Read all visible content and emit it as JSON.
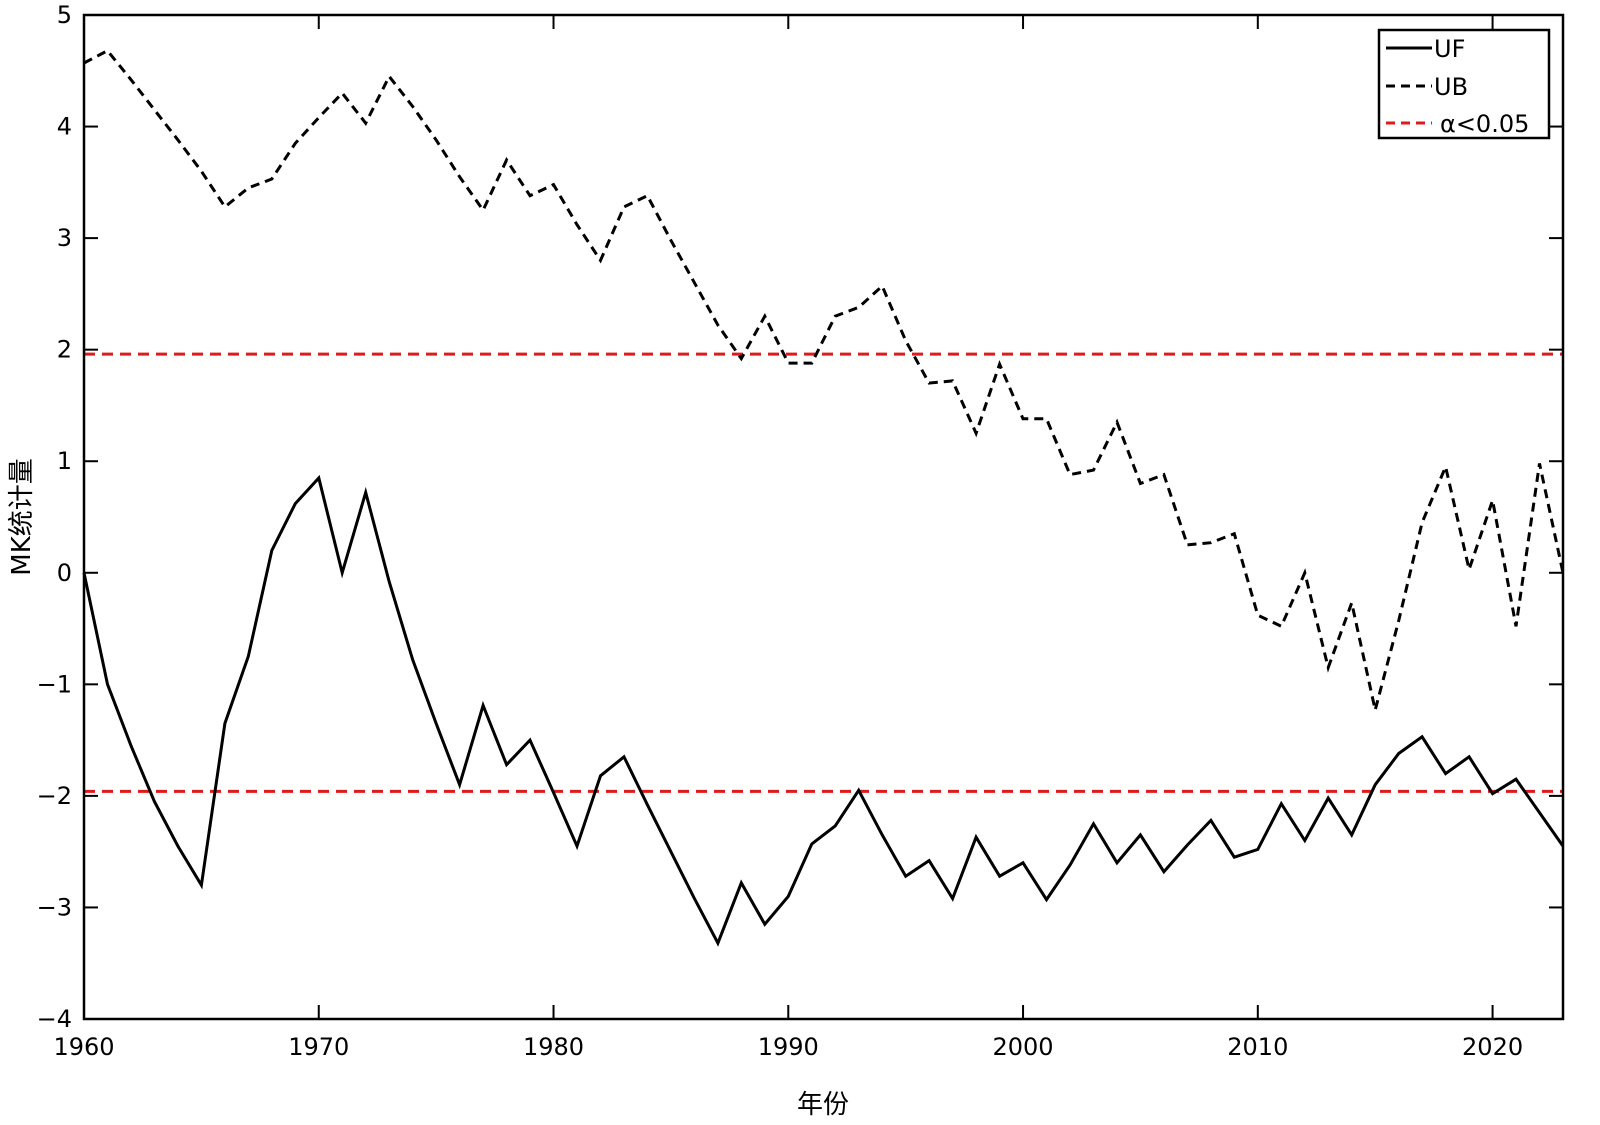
{
  "chart_data": {
    "type": "line",
    "title": "",
    "xlabel": "年份",
    "ylabel": "MK统计量",
    "xlim": [
      1960,
      2023
    ],
    "ylim": [
      -4,
      5
    ],
    "xticks": [
      1960,
      1970,
      1980,
      1990,
      2000,
      2010,
      2020
    ],
    "yticks": [
      -4,
      -3,
      -2,
      -1,
      0,
      1,
      2,
      3,
      4,
      5
    ],
    "x": [
      1960,
      1961,
      1962,
      1963,
      1964,
      1965,
      1966,
      1967,
      1968,
      1969,
      1970,
      1971,
      1972,
      1973,
      1974,
      1975,
      1976,
      1977,
      1978,
      1979,
      1980,
      1981,
      1982,
      1983,
      1984,
      1985,
      1986,
      1987,
      1988,
      1989,
      1990,
      1991,
      1992,
      1993,
      1994,
      1995,
      1996,
      1997,
      1998,
      1999,
      2000,
      2001,
      2002,
      2003,
      2004,
      2005,
      2006,
      2007,
      2008,
      2009,
      2010,
      2011,
      2012,
      2013,
      2014,
      2015,
      2016,
      2017,
      2018,
      2019,
      2020,
      2021,
      2022,
      2023
    ],
    "series": [
      {
        "name": "UF",
        "color": "#000000",
        "dash": "solid",
        "values": [
          0,
          -1.0,
          -1.55,
          -2.05,
          -2.45,
          -2.8,
          -1.35,
          -0.75,
          0.2,
          0.62,
          0.85,
          0.0,
          0.72,
          -0.08,
          -0.78,
          -1.35,
          -1.9,
          -1.19,
          -1.72,
          -1.5,
          -1.97,
          -2.45,
          -1.82,
          -1.65,
          -2.08,
          -2.5,
          -2.92,
          -3.32,
          -2.78,
          -3.15,
          -2.9,
          -2.43,
          -2.27,
          -1.95,
          -2.35,
          -2.72,
          -2.58,
          -2.92,
          -2.37,
          -2.72,
          -2.6,
          -2.93,
          -2.62,
          -2.25,
          -2.6,
          -2.35,
          -2.68,
          -2.44,
          -2.22,
          -2.55,
          -2.48,
          -2.07,
          -2.4,
          -2.02,
          -2.35,
          -1.9,
          -1.62,
          -1.47,
          -1.8,
          -1.65,
          -1.98,
          -1.85,
          -2.15,
          -2.45
        ]
      },
      {
        "name": "UB",
        "color": "#000000",
        "dash": "dashed",
        "values": [
          4.57,
          4.68,
          4.42,
          4.15,
          3.88,
          3.6,
          3.28,
          3.45,
          3.53,
          3.85,
          4.08,
          4.3,
          4.03,
          4.45,
          4.18,
          3.88,
          3.55,
          3.25,
          3.7,
          3.38,
          3.48,
          3.12,
          2.8,
          3.28,
          3.38,
          2.98,
          2.6,
          2.22,
          1.92,
          2.3,
          1.88,
          1.88,
          2.3,
          2.38,
          2.57,
          2.08,
          1.7,
          1.72,
          1.25,
          1.87,
          1.38,
          1.38,
          0.88,
          0.92,
          1.35,
          0.8,
          0.88,
          0.25,
          0.27,
          0.35,
          -0.38,
          -0.48,
          0.0,
          -0.85,
          -0.27,
          -1.23,
          -0.43,
          0.45,
          0.95,
          0.03,
          0.65,
          -0.48,
          0.98,
          0.0
        ]
      },
      {
        "name": "α<0.05",
        "color": "#e01a1a",
        "dash": "dashed",
        "threshold": [
          1.96,
          -1.96
        ]
      }
    ],
    "legend": {
      "position": "top-right",
      "entries": [
        "UF",
        "UB",
        "α<0.05"
      ]
    },
    "grid": false
  }
}
